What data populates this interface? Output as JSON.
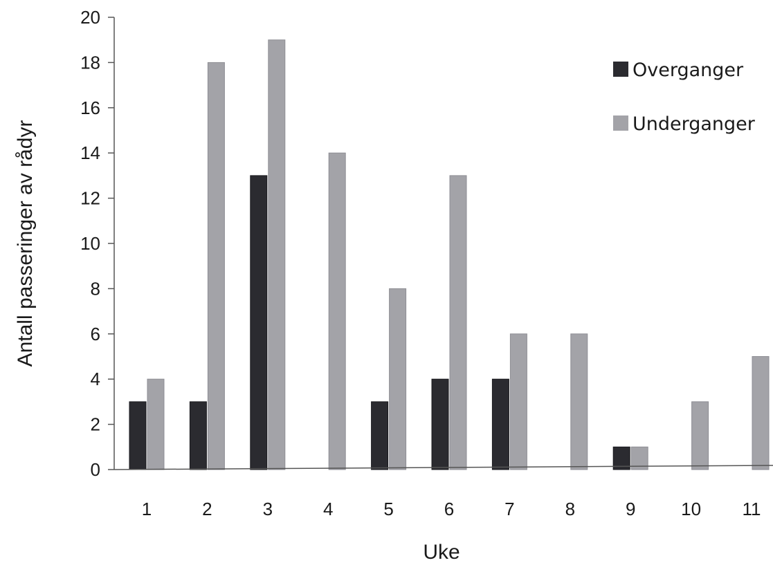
{
  "chart_data": {
    "type": "bar",
    "title": "",
    "xlabel": "Uke",
    "ylabel": "Antall passeringer av rådyr",
    "categories": [
      "1",
      "2",
      "3",
      "4",
      "5",
      "6",
      "7",
      "8",
      "9",
      "10",
      "11"
    ],
    "yticks": [
      "0",
      "2",
      "4",
      "6",
      "8",
      "10",
      "12",
      "14",
      "16",
      "18",
      "20"
    ],
    "ylim": [
      0,
      20
    ],
    "grid": false,
    "legend_position": "top-right",
    "series": [
      {
        "name": "Overganger",
        "color": "#2b2b30",
        "values": [
          3,
          3,
          13,
          0,
          3,
          4,
          4,
          0,
          1,
          0,
          0
        ]
      },
      {
        "name": "Underganger",
        "color": "#a3a3a8",
        "values": [
          4,
          18,
          19,
          14,
          8,
          13,
          6,
          6,
          1,
          3,
          5
        ]
      }
    ]
  }
}
